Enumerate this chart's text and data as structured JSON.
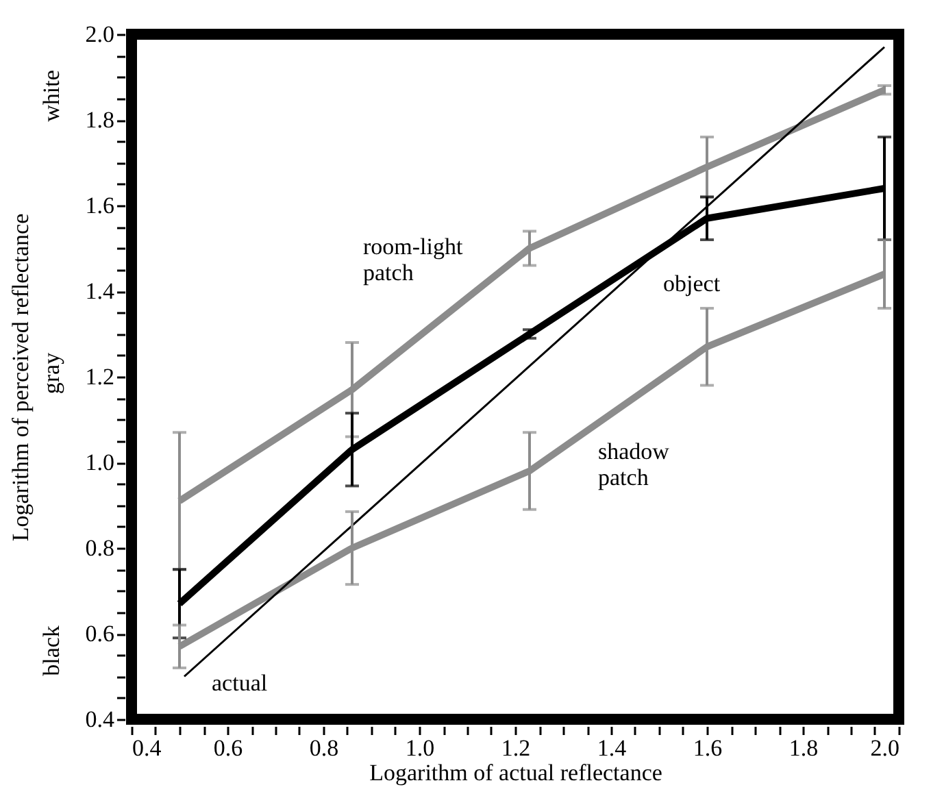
{
  "chart_data": {
    "type": "line",
    "xlabel": "Logarithm of actual reflectance",
    "ylabel": "Logarithm of perceived reflectance",
    "xlim": [
      0.4,
      2.0
    ],
    "ylim": [
      0.4,
      2.0
    ],
    "xticks": [
      0.4,
      {
        "value": 0.45,
        "label": null
      },
      {
        "value": 0.5,
        "label": null
      },
      {
        "value": 0.55,
        "label": null
      },
      0.6,
      {
        "value": 0.65,
        "label": null
      },
      {
        "value": 0.7,
        "label": null
      },
      {
        "value": 0.75,
        "label": null
      },
      0.8,
      {
        "value": 0.85,
        "label": null
      },
      {
        "value": 0.9,
        "label": null
      },
      {
        "value": 0.95,
        "label": null
      },
      {
        "value": 1.0,
        "label": "1.0"
      },
      {
        "value": 1.05,
        "label": null
      },
      {
        "value": 1.1,
        "label": null
      },
      {
        "value": 1.15,
        "label": null
      },
      1.2,
      {
        "value": 1.25,
        "label": null
      },
      {
        "value": 1.3,
        "label": null
      },
      {
        "value": 1.35,
        "label": null
      },
      1.4,
      {
        "value": 1.45,
        "label": null
      },
      {
        "value": 1.5,
        "label": null
      },
      {
        "value": 1.55,
        "label": null
      },
      1.6,
      {
        "value": 1.65,
        "label": null
      },
      {
        "value": 1.7,
        "label": null
      },
      {
        "value": 1.75,
        "label": null
      },
      1.8,
      {
        "value": 1.85,
        "label": null
      },
      {
        "value": 1.9,
        "label": null
      },
      {
        "value": 1.95,
        "label": null
      },
      {
        "value": 2.0,
        "label": "2.0"
      }
    ],
    "yticks": [
      0.4,
      {
        "value": 0.45,
        "label": null
      },
      {
        "value": 0.5,
        "label": null
      },
      {
        "value": 0.55,
        "label": null
      },
      0.6,
      {
        "value": 0.65,
        "label": null
      },
      {
        "value": 0.7,
        "label": null
      },
      {
        "value": 0.75,
        "label": null
      },
      0.8,
      {
        "value": 0.85,
        "label": null
      },
      {
        "value": 0.9,
        "label": null
      },
      {
        "value": 0.95,
        "label": null
      },
      {
        "value": 1.0,
        "label": "1.0"
      },
      {
        "value": 1.05,
        "label": null
      },
      {
        "value": 1.1,
        "label": null
      },
      {
        "value": 1.15,
        "label": null
      },
      1.2,
      {
        "value": 1.25,
        "label": null
      },
      {
        "value": 1.3,
        "label": null
      },
      {
        "value": 1.35,
        "label": null
      },
      1.4,
      {
        "value": 1.45,
        "label": null
      },
      {
        "value": 1.5,
        "label": null
      },
      {
        "value": 1.55,
        "label": null
      },
      1.6,
      {
        "value": 1.65,
        "label": null
      },
      {
        "value": 1.7,
        "label": null
      },
      {
        "value": 1.75,
        "label": null
      },
      1.8,
      {
        "value": 1.85,
        "label": null
      },
      {
        "value": 1.9,
        "label": null
      },
      {
        "value": 1.95,
        "label": null
      },
      {
        "value": 2.0,
        "label": "2.0"
      }
    ],
    "grid": false,
    "marker": "none",
    "line_style": "solid",
    "x": [
      0.5,
      0.86,
      1.23,
      1.6,
      1.97
    ],
    "series": [
      {
        "name": "room-light patch",
        "color": "#8c8c8c",
        "values": [
          0.91,
          1.17,
          1.5,
          1.69,
          1.87
        ],
        "errors": [
          0.16,
          0.11,
          0.04,
          0.07,
          0.01
        ]
      },
      {
        "name": "object",
        "color": "#000000",
        "values": [
          0.67,
          1.03,
          1.3,
          1.57,
          1.64
        ],
        "errors": [
          0.08,
          0.085,
          0.01,
          0.05,
          0.12
        ]
      },
      {
        "name": "shadow patch",
        "color": "#8c8c8c",
        "values": [
          0.57,
          0.8,
          0.98,
          1.27,
          1.44
        ],
        "errors": [
          0.05,
          0.085,
          0.09,
          0.09,
          0.08
        ]
      },
      {
        "name": "actual",
        "color": "#000000",
        "x": [
          0.51,
          1.97
        ],
        "values": [
          0.5,
          1.97
        ]
      }
    ],
    "annotations": [
      "white",
      "gray",
      "black"
    ]
  }
}
